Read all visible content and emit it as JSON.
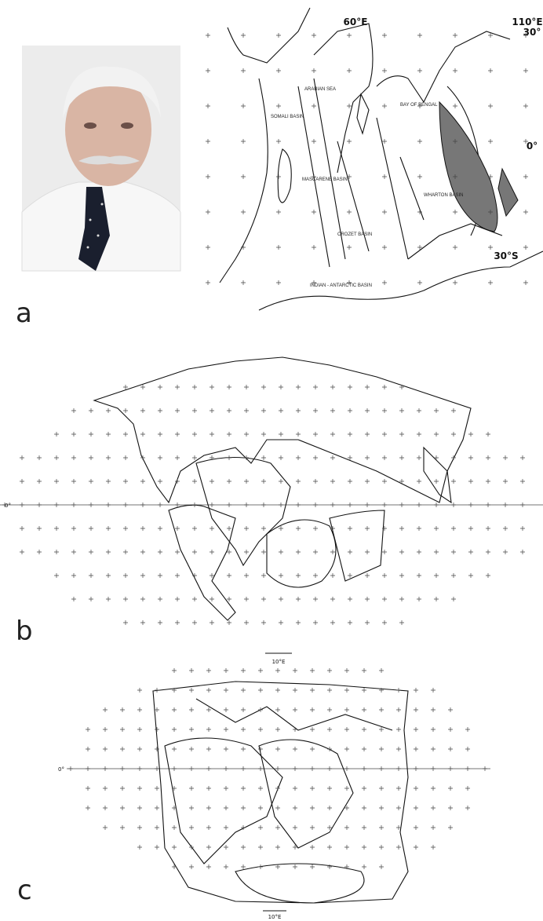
{
  "panel_a": {
    "label": "a",
    "map_labels": [
      "60°E",
      "110°E",
      "30°",
      "0°",
      "30°S",
      "SOMALI BASIN",
      "ARABIAN SEA",
      "BAY OF BENGAL",
      "MASCARENE BASIN",
      "CROZET BASIN",
      "WHARTON BASIN",
      "INDIAN - ANTARCTIC BASIN"
    ]
  },
  "panel_b": {
    "label": "b",
    "map_labels": [
      "0°",
      "10°E"
    ]
  },
  "panel_c": {
    "label": "c",
    "map_labels": [
      "0°",
      "10°E"
    ]
  }
}
